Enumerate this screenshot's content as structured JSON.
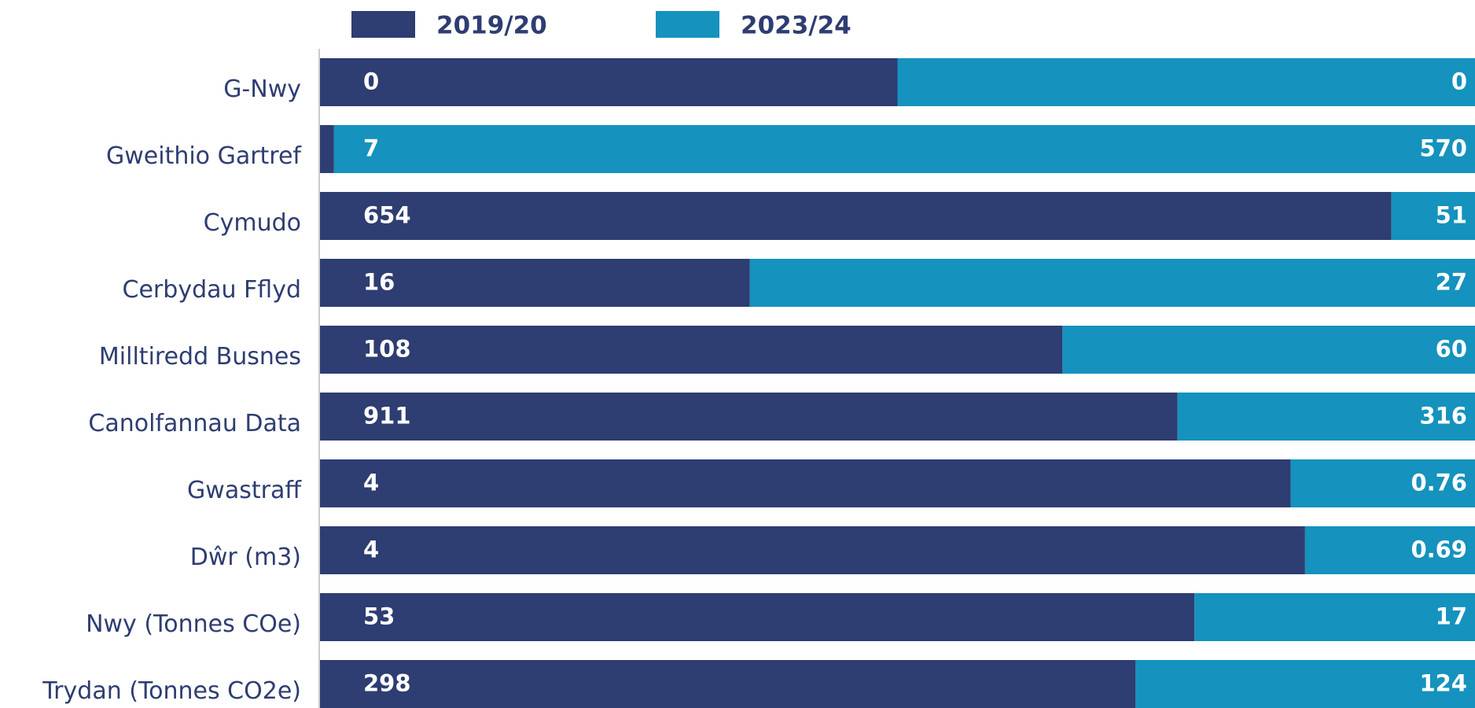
{
  "chart_data": {
    "type": "bar",
    "orientation": "horizontal",
    "stack": "percent",
    "categories": [
      "G-Nwy",
      "Gweithio Gartref",
      "Cymudo",
      "Cerbydau Fflyd",
      "Milltiredd Busnes",
      "Canolfannau Data",
      "Gwastraff",
      "Dŵr (m3)",
      "Nwy (Tonnes COe)",
      "Trydan (Tonnes CO2e)"
    ],
    "series": [
      {
        "name": "2019/20",
        "color": "#2e3d72",
        "values": [
          0,
          7,
          654,
          16,
          108,
          911,
          4,
          4,
          53,
          298
        ]
      },
      {
        "name": "2023/24",
        "color": "#1592bd",
        "values": [
          0,
          570,
          51,
          27,
          60,
          316,
          0.76,
          0.69,
          17,
          124
        ]
      }
    ],
    "legend": "top"
  }
}
